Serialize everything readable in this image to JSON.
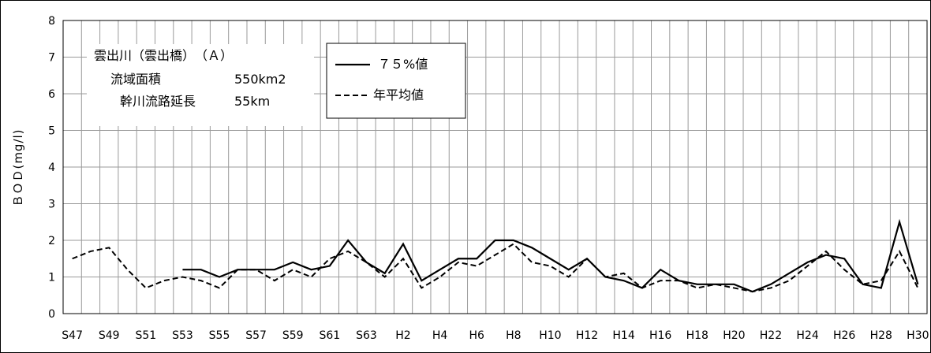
{
  "chart_data": {
    "type": "line",
    "ylabel": "ＢＯＤ(mg/l)",
    "ylim": [
      0,
      8
    ],
    "yticks": [
      "0",
      "1",
      "2",
      "3",
      "4",
      "5",
      "6",
      "7",
      "8"
    ],
    "grid": true,
    "x": [
      "S47",
      "S48",
      "S49",
      "S50",
      "S51",
      "S52",
      "S53",
      "S54",
      "S55",
      "S56",
      "S57",
      "S58",
      "S59",
      "S60",
      "S61",
      "S62",
      "S63",
      "H1",
      "H2",
      "H3",
      "H4",
      "H5",
      "H6",
      "H7",
      "H8",
      "H9",
      "H10",
      "H11",
      "H12",
      "H13",
      "H14",
      "H15",
      "H16",
      "H17",
      "H18",
      "H19",
      "H20",
      "H21",
      "H22",
      "H23",
      "H24",
      "H25",
      "H26",
      "H27",
      "H28",
      "H29",
      "H30"
    ],
    "xtick_labels": [
      "S47",
      "S49",
      "S51",
      "S53",
      "S55",
      "S57",
      "S59",
      "S61",
      "S63",
      "H2",
      "H4",
      "H6",
      "H8",
      "H10",
      "H12",
      "H14",
      "H16",
      "H18",
      "H20",
      "H22",
      "H24",
      "H26",
      "H28",
      "H30"
    ],
    "series": [
      {
        "name": "７５%値",
        "style": "solid",
        "values": [
          null,
          null,
          null,
          null,
          null,
          null,
          1.2,
          1.2,
          1.0,
          1.2,
          1.2,
          1.2,
          1.4,
          1.2,
          1.3,
          2.0,
          1.4,
          1.1,
          1.9,
          0.9,
          1.2,
          1.5,
          1.5,
          2.0,
          2.0,
          1.8,
          1.5,
          1.2,
          1.5,
          1.0,
          0.9,
          0.7,
          1.2,
          0.9,
          0.8,
          0.8,
          0.8,
          0.6,
          0.8,
          1.1,
          1.4,
          1.6,
          1.5,
          0.8,
          0.7,
          2.5,
          0.8
        ]
      },
      {
        "name": "年平均値",
        "style": "dashed",
        "values": [
          1.5,
          1.7,
          1.8,
          1.2,
          0.7,
          0.9,
          1.0,
          0.9,
          0.7,
          1.2,
          1.2,
          0.9,
          1.2,
          1.0,
          1.5,
          1.7,
          1.4,
          1.0,
          1.5,
          0.7,
          1.0,
          1.4,
          1.3,
          1.6,
          1.9,
          1.4,
          1.3,
          1.0,
          1.5,
          1.0,
          1.1,
          0.7,
          0.9,
          0.9,
          0.7,
          0.8,
          0.7,
          0.6,
          0.7,
          0.9,
          1.3,
          1.7,
          1.2,
          0.8,
          0.9,
          1.7,
          0.7
        ]
      }
    ],
    "annotation": {
      "lines": [
        "雲出川（雲出橋）　（Ａ）",
        "流域面積",
        "550km2",
        "幹川流路延長",
        "55km"
      ]
    },
    "legend_position": "top-left"
  },
  "colors": {
    "line": "#000000",
    "grid": "#9a9a9a",
    "frame": "#000000"
  }
}
